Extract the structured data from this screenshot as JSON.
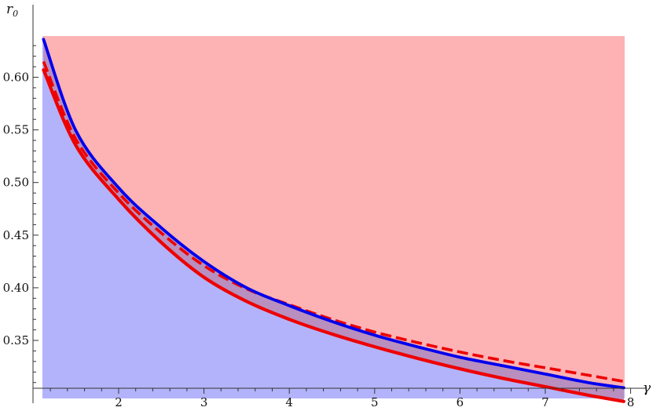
{
  "chart_data": {
    "type": "area",
    "title": "",
    "xlabel": "γ",
    "ylabel": "r",
    "ylabel_subscript": "0",
    "xlim": [
      1.1,
      8.0
    ],
    "ylim": [
      0.3,
      0.636
    ],
    "x_ticks": [
      "2",
      "3",
      "4",
      "5",
      "6",
      "7",
      "8"
    ],
    "y_ticks": [
      "0.35",
      "0.40",
      "0.45",
      "0.50",
      "0.55",
      "0.60"
    ],
    "grid": false,
    "legend": "none",
    "regions": [
      {
        "fill": "#b3b3fb",
        "description_key": "below blue curve"
      },
      {
        "fill": "#fdb2b4",
        "description_key": "above blue curve"
      }
    ],
    "series": [
      {
        "style": "solid",
        "color": "#0000ee",
        "x": [
          1.12,
          1.5,
          2.0,
          2.5,
          3.0,
          3.5,
          4.0,
          4.5,
          5.0,
          5.5,
          6.0,
          6.5,
          7.0,
          7.5,
          7.92
        ],
        "y": [
          0.636,
          0.549,
          0.495,
          0.457,
          0.425,
          0.4,
          0.383,
          0.368,
          0.355,
          0.344,
          0.334,
          0.326,
          0.318,
          0.31,
          0.305
        ]
      },
      {
        "style": "dashed",
        "color": "#ee0000",
        "x": [
          1.12,
          1.5,
          2.0,
          2.5,
          3.0,
          3.5,
          4.0,
          4.5,
          5.0,
          5.5,
          6.0,
          6.5,
          7.0,
          7.5,
          7.92
        ],
        "y": [
          0.615,
          0.541,
          0.49,
          0.452,
          0.421,
          0.399,
          0.384,
          0.37,
          0.358,
          0.348,
          0.339,
          0.331,
          0.324,
          0.317,
          0.311
        ]
      },
      {
        "style": "solid",
        "color": "#ee0000",
        "x": [
          1.12,
          1.5,
          2.0,
          2.5,
          3.0,
          3.5,
          4.0,
          4.5,
          5.0,
          5.5,
          6.0,
          6.5,
          7.0,
          7.5,
          7.92
        ],
        "y": [
          0.607,
          0.535,
          0.484,
          0.443,
          0.41,
          0.387,
          0.37,
          0.356,
          0.344,
          0.333,
          0.323,
          0.314,
          0.306,
          0.298,
          0.292
        ]
      }
    ]
  }
}
